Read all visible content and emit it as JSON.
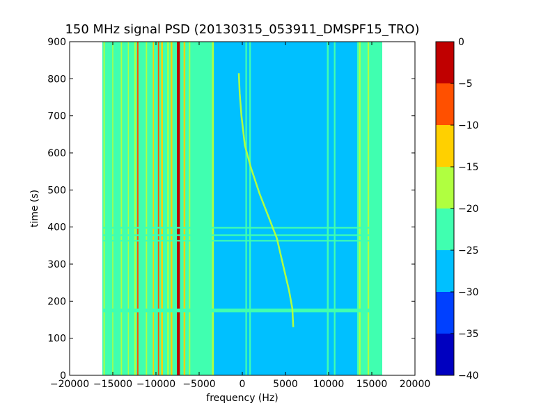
{
  "chart_data": {
    "type": "heatmap",
    "title": "150 MHz signal PSD (20130315_053911_DMSPF15_TRO)",
    "xlabel": "frequency (Hz)",
    "ylabel": "time (s)",
    "xlim": [
      -20000,
      20000
    ],
    "ylim": [
      0,
      900
    ],
    "x_ticks": [
      -20000,
      -15000,
      -10000,
      -5000,
      0,
      5000,
      10000,
      15000,
      20000
    ],
    "x_tick_labels": [
      "−20000",
      "−15000",
      "−10000",
      "−5000",
      "0",
      "5000",
      "10000",
      "15000",
      "20000"
    ],
    "y_ticks": [
      0,
      100,
      200,
      300,
      400,
      500,
      600,
      700,
      800,
      900
    ],
    "y_tick_labels": [
      "0",
      "100",
      "200",
      "300",
      "400",
      "500",
      "600",
      "700",
      "800",
      "900"
    ],
    "data_extent_x": [
      -16200,
      16200
    ],
    "background_level": -27.5,
    "colorbar": {
      "range": [
        -40,
        0
      ],
      "levels": [
        -40,
        -35,
        -30,
        -25,
        -20,
        -15,
        -10,
        -5,
        0
      ],
      "tick_labels": [
        "−40",
        "−35",
        "−30",
        "−25",
        "−20",
        "−15",
        "−10",
        "−5",
        "0"
      ],
      "colors": [
        "#0000c0",
        "#0040ff",
        "#00c0ff",
        "#40ffb0",
        "#b0ff40",
        "#ffd000",
        "#ff5000",
        "#c00000"
      ]
    },
    "features": [
      {
        "kind": "band",
        "x": [
          -16200,
          -3400
        ],
        "level": -22.5
      },
      {
        "kind": "band",
        "x": [
          13300,
          16200
        ],
        "level": -22.5
      },
      {
        "kind": "band",
        "x": [
          15200,
          16200
        ],
        "level": -22.5
      },
      {
        "kind": "line",
        "x": -16000,
        "width": 150,
        "level": -17.5
      },
      {
        "kind": "line",
        "x": -15000,
        "width": 120,
        "level": -17.5
      },
      {
        "kind": "line",
        "x": -14000,
        "width": 150,
        "level": -17.5
      },
      {
        "kind": "line",
        "x": -13200,
        "width": 120,
        "level": -17.5
      },
      {
        "kind": "line",
        "x": -12400,
        "width": 200,
        "level": -17.5
      },
      {
        "kind": "line",
        "x": -12100,
        "width": 150,
        "level": -7.5
      },
      {
        "kind": "line",
        "x": -11100,
        "width": 150,
        "level": -17.5
      },
      {
        "kind": "line",
        "x": -10300,
        "width": 150,
        "level": -12.5
      },
      {
        "kind": "line",
        "x": -9700,
        "width": 150,
        "level": -7.5
      },
      {
        "kind": "line",
        "x": -9300,
        "width": 200,
        "level": -12.5
      },
      {
        "kind": "line",
        "x": -8600,
        "width": 200,
        "level": -17.5
      },
      {
        "kind": "line",
        "x": -8200,
        "width": 200,
        "level": -12.5
      },
      {
        "kind": "line",
        "x": -7400,
        "width": 350,
        "level": -2.5
      },
      {
        "kind": "line",
        "x": -6700,
        "width": 200,
        "level": -12.5
      },
      {
        "kind": "line",
        "x": -6100,
        "width": 150,
        "level": -17.5
      },
      {
        "kind": "line",
        "x": -5500,
        "width": 150,
        "level": -22.5
      },
      {
        "kind": "line",
        "x": -4600,
        "width": 150,
        "level": -22.5
      },
      {
        "kind": "line",
        "x": -3400,
        "width": 220,
        "level": -17.5
      },
      {
        "kind": "line",
        "x": 450,
        "width": 180,
        "level": -22.5
      },
      {
        "kind": "line",
        "x": 900,
        "width": 180,
        "level": -22.5
      },
      {
        "kind": "line",
        "x": 9900,
        "width": 200,
        "level": -22.5
      },
      {
        "kind": "line",
        "x": 10700,
        "width": 180,
        "level": -22.5
      },
      {
        "kind": "line",
        "x": 13600,
        "width": 200,
        "level": -17.5
      },
      {
        "kind": "line",
        "x": 14600,
        "width": 180,
        "level": -17.5
      },
      {
        "kind": "hline",
        "y": 175,
        "width": 10,
        "level": -22.5
      },
      {
        "kind": "hline",
        "y": 363,
        "width": 4,
        "level": -22.5
      },
      {
        "kind": "hline",
        "y": 378,
        "width": 4,
        "level": -22.5
      },
      {
        "kind": "hline",
        "y": 398,
        "width": 4,
        "level": -22.5
      }
    ],
    "trace": {
      "level": -17.5,
      "points": [
        [
          5900,
          130
        ],
        [
          5800,
          180
        ],
        [
          5400,
          230
        ],
        [
          4800,
          290
        ],
        [
          4000,
          370
        ],
        [
          3000,
          430
        ],
        [
          2000,
          490
        ],
        [
          1000,
          560
        ],
        [
          300,
          620
        ],
        [
          -100,
          700
        ],
        [
          -300,
          760
        ],
        [
          -400,
          815
        ]
      ]
    }
  }
}
